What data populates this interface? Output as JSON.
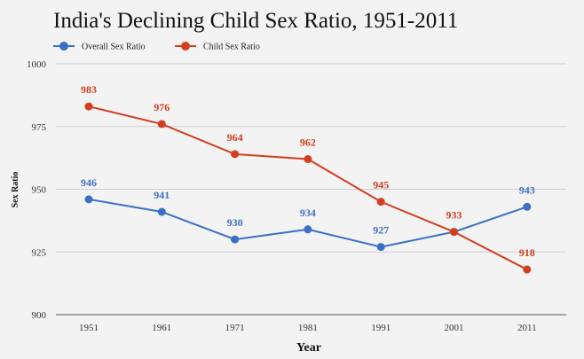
{
  "chart_data": {
    "type": "line",
    "title": "India's Declining Child Sex Ratio, 1951-2011",
    "xlabel": "Year",
    "ylabel": "Sex Ratio",
    "categories": [
      "1951",
      "1961",
      "1971",
      "1981",
      "1991",
      "2001",
      "2011"
    ],
    "ylim": [
      900,
      1000
    ],
    "yticks": [
      "900",
      "925",
      "950",
      "975",
      "1000"
    ],
    "legend_position": "top-left",
    "grid": true,
    "series": [
      {
        "name": "Overall Sex Ratio",
        "color": "#3a6fc4",
        "values": [
          946,
          941,
          930,
          934,
          927,
          933,
          943
        ],
        "labels": [
          "946",
          "941",
          "930",
          "934",
          "927",
          "",
          "943"
        ]
      },
      {
        "name": "Child Sex Ratio",
        "color": "#d23e1e",
        "values": [
          983,
          976,
          964,
          962,
          945,
          933,
          918
        ],
        "labels": [
          "983",
          "976",
          "964",
          "962",
          "945",
          "933",
          "918"
        ]
      }
    ]
  }
}
